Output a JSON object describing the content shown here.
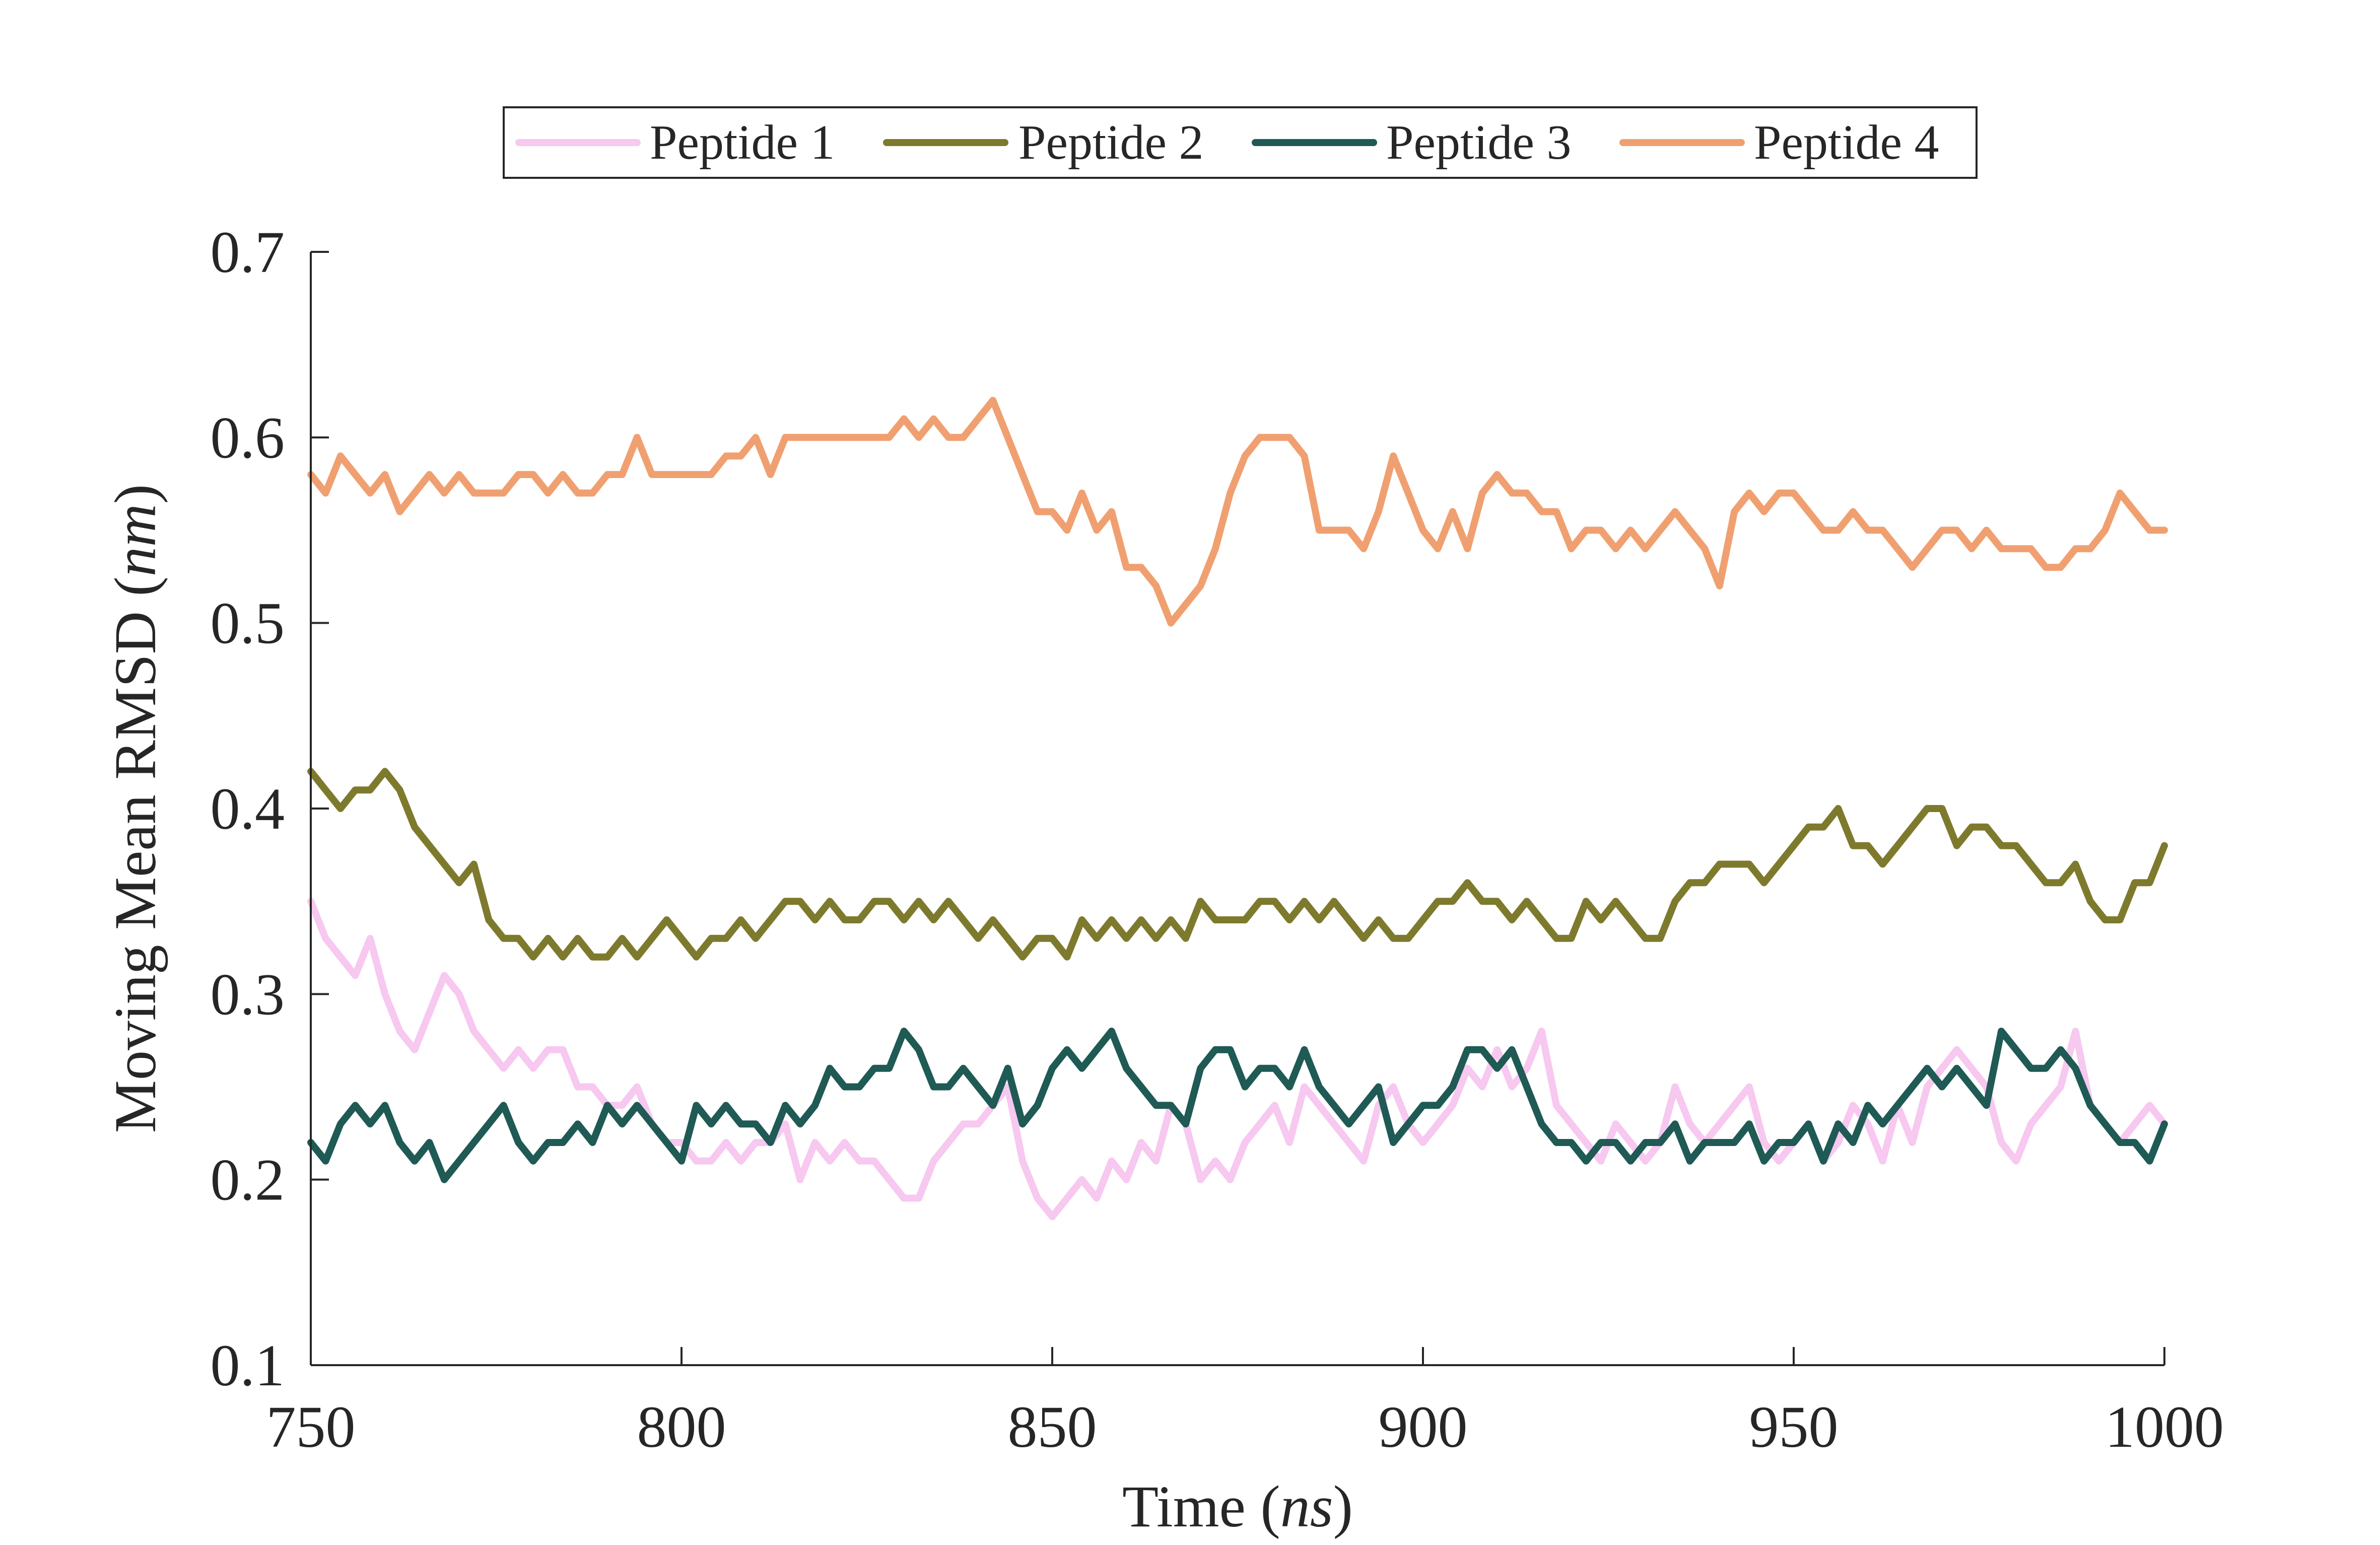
{
  "chart_data": {
    "type": "line",
    "xlabel": "Time",
    "xunit": "ns",
    "ylabel": "Moving Mean RMSD",
    "yunit": "nm",
    "xlim": [
      750,
      1000
    ],
    "ylim": [
      0.1,
      0.7
    ],
    "xticks": [
      "750",
      "800",
      "850",
      "900",
      "950",
      "1000"
    ],
    "yticks": [
      "0.1",
      "0.2",
      "0.3",
      "0.4",
      "0.5",
      "0.6",
      "0.7"
    ],
    "grid": false,
    "legend_position": "top-center",
    "series": [
      {
        "name": "Peptide 1",
        "color": "#f7c8f0",
        "x": [
          750,
          752,
          754,
          756,
          758,
          760,
          762,
          764,
          766,
          768,
          770,
          772,
          774,
          776,
          778,
          780,
          782,
          784,
          786,
          788,
          790,
          792,
          794,
          796,
          798,
          800,
          802,
          804,
          806,
          808,
          810,
          812,
          814,
          816,
          818,
          820,
          822,
          824,
          826,
          828,
          830,
          832,
          834,
          836,
          838,
          840,
          842,
          844,
          846,
          848,
          850,
          852,
          854,
          856,
          858,
          860,
          862,
          864,
          866,
          868,
          870,
          872,
          874,
          876,
          878,
          880,
          882,
          884,
          886,
          888,
          890,
          892,
          894,
          896,
          898,
          900,
          902,
          904,
          906,
          908,
          910,
          912,
          914,
          916,
          918,
          920,
          922,
          924,
          926,
          928,
          930,
          932,
          934,
          936,
          938,
          940,
          942,
          944,
          946,
          948,
          950,
          952,
          954,
          956,
          958,
          960,
          962,
          964,
          966,
          968,
          970,
          972,
          974,
          976,
          978,
          980,
          982,
          984,
          986,
          988,
          990,
          992,
          994,
          996,
          998,
          1000
        ],
        "values": [
          0.35,
          0.33,
          0.32,
          0.31,
          0.33,
          0.3,
          0.28,
          0.27,
          0.29,
          0.31,
          0.3,
          0.28,
          0.27,
          0.26,
          0.27,
          0.26,
          0.27,
          0.27,
          0.25,
          0.25,
          0.24,
          0.24,
          0.25,
          0.23,
          0.22,
          0.22,
          0.21,
          0.21,
          0.22,
          0.21,
          0.22,
          0.22,
          0.23,
          0.2,
          0.22,
          0.21,
          0.22,
          0.21,
          0.21,
          0.2,
          0.19,
          0.19,
          0.21,
          0.22,
          0.23,
          0.23,
          0.24,
          0.25,
          0.21,
          0.19,
          0.18,
          0.19,
          0.2,
          0.19,
          0.21,
          0.2,
          0.22,
          0.21,
          0.24,
          0.23,
          0.2,
          0.21,
          0.2,
          0.22,
          0.23,
          0.24,
          0.22,
          0.25,
          0.24,
          0.23,
          0.22,
          0.21,
          0.24,
          0.25,
          0.23,
          0.22,
          0.23,
          0.24,
          0.26,
          0.25,
          0.27,
          0.25,
          0.26,
          0.28,
          0.24,
          0.23,
          0.22,
          0.21,
          0.23,
          0.22,
          0.21,
          0.22,
          0.25,
          0.23,
          0.22,
          0.23,
          0.24,
          0.25,
          0.22,
          0.21,
          0.22,
          0.23,
          0.21,
          0.22,
          0.24,
          0.23,
          0.21,
          0.24,
          0.22,
          0.25,
          0.26,
          0.27,
          0.26,
          0.25,
          0.22,
          0.21,
          0.23,
          0.24,
          0.25,
          0.28,
          0.24,
          0.23,
          0.22,
          0.23,
          0.24,
          0.23
        ]
      },
      {
        "name": "Peptide 2",
        "color": "#7d7a2d",
        "x": [
          750,
          752,
          754,
          756,
          758,
          760,
          762,
          764,
          766,
          768,
          770,
          772,
          774,
          776,
          778,
          780,
          782,
          784,
          786,
          788,
          790,
          792,
          794,
          796,
          798,
          800,
          802,
          804,
          806,
          808,
          810,
          812,
          814,
          816,
          818,
          820,
          822,
          824,
          826,
          828,
          830,
          832,
          834,
          836,
          838,
          840,
          842,
          844,
          846,
          848,
          850,
          852,
          854,
          856,
          858,
          860,
          862,
          864,
          866,
          868,
          870,
          872,
          874,
          876,
          878,
          880,
          882,
          884,
          886,
          888,
          890,
          892,
          894,
          896,
          898,
          900,
          902,
          904,
          906,
          908,
          910,
          912,
          914,
          916,
          918,
          920,
          922,
          924,
          926,
          928,
          930,
          932,
          934,
          936,
          938,
          940,
          942,
          944,
          946,
          948,
          950,
          952,
          954,
          956,
          958,
          960,
          962,
          964,
          966,
          968,
          970,
          972,
          974,
          976,
          978,
          980,
          982,
          984,
          986,
          988,
          990,
          992,
          994,
          996,
          998,
          1000
        ],
        "values": [
          0.42,
          0.41,
          0.4,
          0.41,
          0.41,
          0.42,
          0.41,
          0.39,
          0.38,
          0.37,
          0.36,
          0.37,
          0.34,
          0.33,
          0.33,
          0.32,
          0.33,
          0.32,
          0.33,
          0.32,
          0.32,
          0.33,
          0.32,
          0.33,
          0.34,
          0.33,
          0.32,
          0.33,
          0.33,
          0.34,
          0.33,
          0.34,
          0.35,
          0.35,
          0.34,
          0.35,
          0.34,
          0.34,
          0.35,
          0.35,
          0.34,
          0.35,
          0.34,
          0.35,
          0.34,
          0.33,
          0.34,
          0.33,
          0.32,
          0.33,
          0.33,
          0.32,
          0.34,
          0.33,
          0.34,
          0.33,
          0.34,
          0.33,
          0.34,
          0.33,
          0.35,
          0.34,
          0.34,
          0.34,
          0.35,
          0.35,
          0.34,
          0.35,
          0.34,
          0.35,
          0.34,
          0.33,
          0.34,
          0.33,
          0.33,
          0.34,
          0.35,
          0.35,
          0.36,
          0.35,
          0.35,
          0.34,
          0.35,
          0.34,
          0.33,
          0.33,
          0.35,
          0.34,
          0.35,
          0.34,
          0.33,
          0.33,
          0.35,
          0.36,
          0.36,
          0.37,
          0.37,
          0.37,
          0.36,
          0.37,
          0.38,
          0.39,
          0.39,
          0.4,
          0.38,
          0.38,
          0.37,
          0.38,
          0.39,
          0.4,
          0.4,
          0.38,
          0.39,
          0.39,
          0.38,
          0.38,
          0.37,
          0.36,
          0.36,
          0.37,
          0.35,
          0.34,
          0.34,
          0.36,
          0.36,
          0.38
        ]
      },
      {
        "name": "Peptide 3",
        "color": "#1f5a55",
        "x": [
          750,
          752,
          754,
          756,
          758,
          760,
          762,
          764,
          766,
          768,
          770,
          772,
          774,
          776,
          778,
          780,
          782,
          784,
          786,
          788,
          790,
          792,
          794,
          796,
          798,
          800,
          802,
          804,
          806,
          808,
          810,
          812,
          814,
          816,
          818,
          820,
          822,
          824,
          826,
          828,
          830,
          832,
          834,
          836,
          838,
          840,
          842,
          844,
          846,
          848,
          850,
          852,
          854,
          856,
          858,
          860,
          862,
          864,
          866,
          868,
          870,
          872,
          874,
          876,
          878,
          880,
          882,
          884,
          886,
          888,
          890,
          892,
          894,
          896,
          898,
          900,
          902,
          904,
          906,
          908,
          910,
          912,
          914,
          916,
          918,
          920,
          922,
          924,
          926,
          928,
          930,
          932,
          934,
          936,
          938,
          940,
          942,
          944,
          946,
          948,
          950,
          952,
          954,
          956,
          958,
          960,
          962,
          964,
          966,
          968,
          970,
          972,
          974,
          976,
          978,
          980,
          982,
          984,
          986,
          988,
          990,
          992,
          994,
          996,
          998,
          1000
        ],
        "values": [
          0.22,
          0.21,
          0.23,
          0.24,
          0.23,
          0.24,
          0.22,
          0.21,
          0.22,
          0.2,
          0.21,
          0.22,
          0.23,
          0.24,
          0.22,
          0.21,
          0.22,
          0.22,
          0.23,
          0.22,
          0.24,
          0.23,
          0.24,
          0.23,
          0.22,
          0.21,
          0.24,
          0.23,
          0.24,
          0.23,
          0.23,
          0.22,
          0.24,
          0.23,
          0.24,
          0.26,
          0.25,
          0.25,
          0.26,
          0.26,
          0.28,
          0.27,
          0.25,
          0.25,
          0.26,
          0.25,
          0.24,
          0.26,
          0.23,
          0.24,
          0.26,
          0.27,
          0.26,
          0.27,
          0.28,
          0.26,
          0.25,
          0.24,
          0.24,
          0.23,
          0.26,
          0.27,
          0.27,
          0.25,
          0.26,
          0.26,
          0.25,
          0.27,
          0.25,
          0.24,
          0.23,
          0.24,
          0.25,
          0.22,
          0.23,
          0.24,
          0.24,
          0.25,
          0.27,
          0.27,
          0.26,
          0.27,
          0.25,
          0.23,
          0.22,
          0.22,
          0.21,
          0.22,
          0.22,
          0.21,
          0.22,
          0.22,
          0.23,
          0.21,
          0.22,
          0.22,
          0.22,
          0.23,
          0.21,
          0.22,
          0.22,
          0.23,
          0.21,
          0.23,
          0.22,
          0.24,
          0.23,
          0.24,
          0.25,
          0.26,
          0.25,
          0.26,
          0.25,
          0.24,
          0.28,
          0.27,
          0.26,
          0.26,
          0.27,
          0.26,
          0.24,
          0.23,
          0.22,
          0.22,
          0.21,
          0.23
        ]
      },
      {
        "name": "Peptide 4",
        "color": "#f0a070",
        "x": [
          750,
          752,
          754,
          756,
          758,
          760,
          762,
          764,
          766,
          768,
          770,
          772,
          774,
          776,
          778,
          780,
          782,
          784,
          786,
          788,
          790,
          792,
          794,
          796,
          798,
          800,
          802,
          804,
          806,
          808,
          810,
          812,
          814,
          816,
          818,
          820,
          822,
          824,
          826,
          828,
          830,
          832,
          834,
          836,
          838,
          840,
          842,
          844,
          846,
          848,
          850,
          852,
          854,
          856,
          858,
          860,
          862,
          864,
          866,
          868,
          870,
          872,
          874,
          876,
          878,
          880,
          882,
          884,
          886,
          888,
          890,
          892,
          894,
          896,
          898,
          900,
          902,
          904,
          906,
          908,
          910,
          912,
          914,
          916,
          918,
          920,
          922,
          924,
          926,
          928,
          930,
          932,
          934,
          936,
          938,
          940,
          942,
          944,
          946,
          948,
          950,
          952,
          954,
          956,
          958,
          960,
          962,
          964,
          966,
          968,
          970,
          972,
          974,
          976,
          978,
          980,
          982,
          984,
          986,
          988,
          990,
          992,
          994,
          996,
          998,
          1000
        ],
        "values": [
          0.58,
          0.57,
          0.59,
          0.58,
          0.57,
          0.58,
          0.56,
          0.57,
          0.58,
          0.57,
          0.58,
          0.57,
          0.57,
          0.57,
          0.58,
          0.58,
          0.57,
          0.58,
          0.57,
          0.57,
          0.58,
          0.58,
          0.6,
          0.58,
          0.58,
          0.58,
          0.58,
          0.58,
          0.59,
          0.59,
          0.6,
          0.58,
          0.6,
          0.6,
          0.6,
          0.6,
          0.6,
          0.6,
          0.6,
          0.6,
          0.61,
          0.6,
          0.61,
          0.6,
          0.6,
          0.61,
          0.62,
          0.6,
          0.58,
          0.56,
          0.56,
          0.55,
          0.57,
          0.55,
          0.56,
          0.53,
          0.53,
          0.52,
          0.5,
          0.51,
          0.52,
          0.54,
          0.57,
          0.59,
          0.6,
          0.6,
          0.6,
          0.59,
          0.55,
          0.55,
          0.55,
          0.54,
          0.56,
          0.59,
          0.57,
          0.55,
          0.54,
          0.56,
          0.54,
          0.57,
          0.58,
          0.57,
          0.57,
          0.56,
          0.56,
          0.54,
          0.55,
          0.55,
          0.54,
          0.55,
          0.54,
          0.55,
          0.56,
          0.55,
          0.54,
          0.52,
          0.56,
          0.57,
          0.56,
          0.57,
          0.57,
          0.56,
          0.55,
          0.55,
          0.56,
          0.55,
          0.55,
          0.54,
          0.53,
          0.54,
          0.55,
          0.55,
          0.54,
          0.55,
          0.54,
          0.54,
          0.54,
          0.53,
          0.53,
          0.54,
          0.54,
          0.55,
          0.57,
          0.56,
          0.55,
          0.55
        ]
      }
    ]
  }
}
